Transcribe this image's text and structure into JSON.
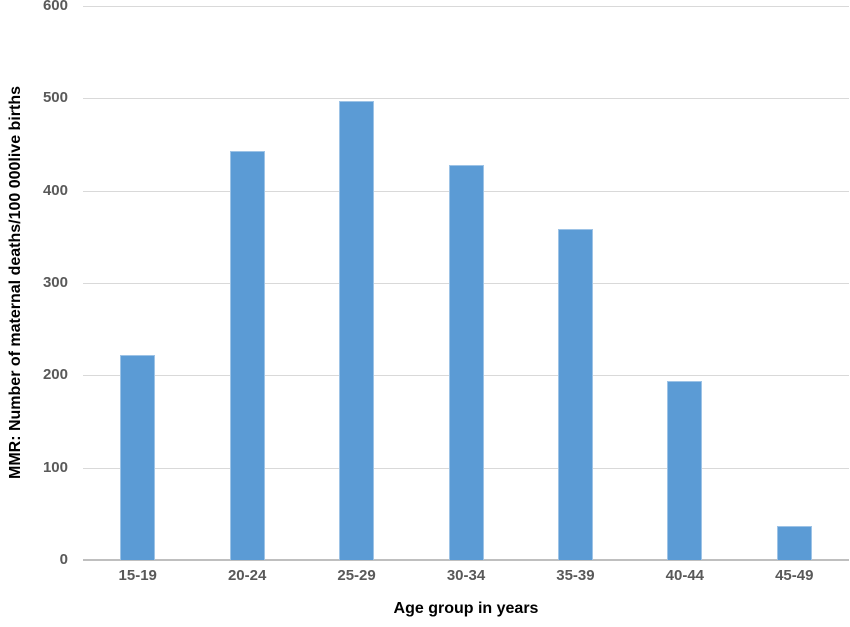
{
  "figure": {
    "background_color": "#ffffff"
  },
  "chart_data": {
    "type": "bar",
    "title": "",
    "categories": [
      "15-19",
      "20-24",
      "25-29",
      "30-34",
      "35-39",
      "40-44",
      "45-49"
    ],
    "values": [
      222,
      443,
      497,
      428,
      358,
      194,
      37
    ],
    "series": [
      {
        "name": "MMR",
        "values": [
          222,
          443,
          497,
          428,
          358,
          194,
          37
        ]
      }
    ],
    "xlabel": "Age group in years",
    "ylabel": "MMR: Number of maternal deaths/100 000live births",
    "ylim": [
      0,
      600
    ],
    "y_ticks": [
      0,
      100,
      200,
      300,
      400,
      500,
      600
    ],
    "grid": "horizontal",
    "legend_position": "none",
    "bar_color": "#5B9BD5",
    "bar_border_color": "#9DC3E6",
    "gridline_color": "#D9D9D9",
    "axis_line_color": "#BFBFBF",
    "tick_label_color": "#595959",
    "axis_title_color": "#000000"
  }
}
